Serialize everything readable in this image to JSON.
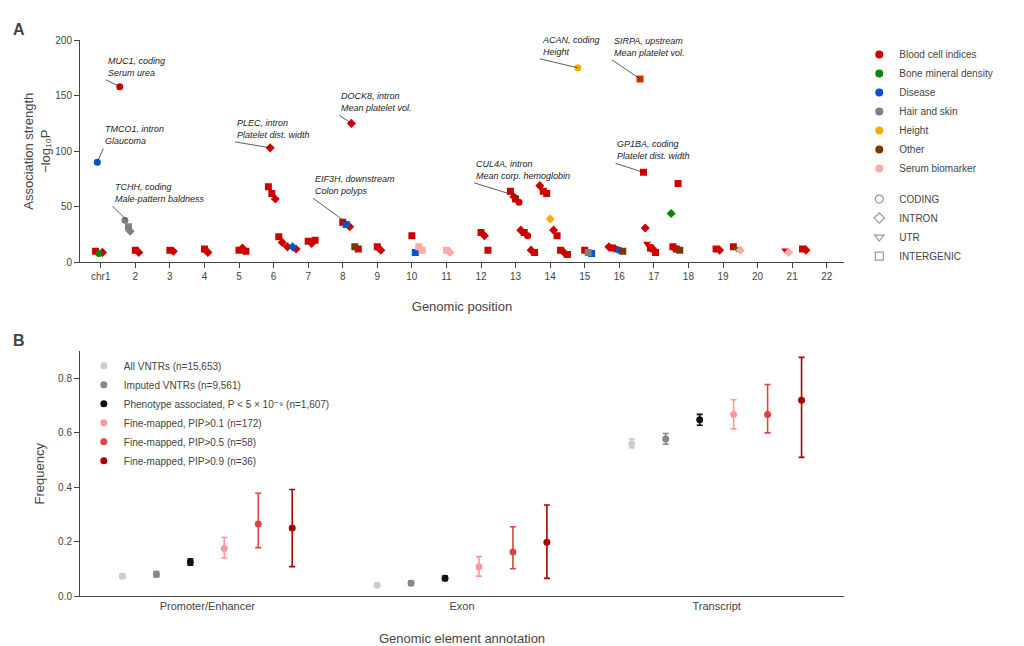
{
  "chart_data": [
    {
      "type": "scatter",
      "title": "A",
      "xlabel": "Genomic position",
      "ylabel": "Association strength\n−log₁₀P",
      "xlim": [
        0.4,
        22.5
      ],
      "ylim": [
        0,
        200
      ],
      "xticks": [
        {
          "value": 1,
          "label": "chr1"
        },
        2,
        3,
        4,
        5,
        6,
        7,
        8,
        9,
        10,
        11,
        12,
        13,
        14,
        15,
        16,
        17,
        18,
        19,
        20,
        21,
        22
      ],
      "yticks": [
        0,
        50,
        100,
        150,
        200
      ],
      "grid": false,
      "legend": "right",
      "series": [
        {
          "name": "Blood cell indices",
          "color": "#cc0000",
          "x": [
            0.85,
            1.05,
            1.55,
            2.0,
            2.1,
            3.0,
            3.1,
            4.0,
            4.1,
            5.0,
            5.1,
            5.2,
            5.85,
            5.95,
            6.05,
            5.9,
            6.15,
            6.25,
            6.4,
            6.65,
            7.0,
            7.1,
            7.2,
            8.0,
            8.2,
            8.25,
            8.45,
            9.0,
            9.1,
            10.0,
            12.0,
            12.1,
            12.2,
            12.85,
            12.95,
            13.0,
            13.1,
            13.15,
            13.25,
            13.35,
            13.45,
            13.55,
            13.7,
            13.8,
            13.9,
            14.1,
            14.2,
            14.3,
            14.4,
            14.5,
            15.0,
            15.7,
            15.8,
            15.9,
            16.7,
            16.75,
            16.8,
            16.85,
            16.9,
            16.95,
            17.0,
            17.05,
            17.55,
            17.6,
            17.65,
            17.7,
            18.8,
            18.9,
            19.3,
            20.8,
            21.3,
            21.4
          ],
          "values": [
            10,
            9,
            158,
            11,
            9,
            11,
            10,
            12,
            9,
            11,
            13,
            10,
            68,
            62,
            57,
            103,
            23,
            18,
            14,
            12,
            19,
            17,
            20,
            36,
            32,
            125,
            12,
            14,
            11,
            24,
            27,
            24,
            11,
            64,
            59,
            57,
            54,
            29,
            27,
            24,
            11,
            9,
            69,
            64,
            62,
            29,
            24,
            11,
            9,
            7,
            11,
            14,
            13,
            12,
            81,
            31,
            17,
            15,
            13,
            12,
            11,
            9,
            14,
            13,
            12,
            71,
            12,
            11,
            14,
            11,
            12,
            11
          ],
          "markers": [
            "square",
            "diamond",
            "circle",
            "square",
            "diamond",
            "square",
            "diamond",
            "square",
            "diamond",
            "square",
            "diamond",
            "square",
            "square",
            "square",
            "diamond",
            "diamond",
            "square",
            "diamond",
            "diamond",
            "diamond",
            "square",
            "diamond",
            "square",
            "square",
            "diamond",
            "diamond",
            "square",
            "square",
            "diamond",
            "square",
            "square",
            "diamond",
            "square",
            "square",
            "diamond",
            "square",
            "circle",
            "diamond",
            "square",
            "circle",
            "diamond",
            "square",
            "diamond",
            "square",
            "square",
            "diamond",
            "square",
            "square",
            "diamond",
            "square",
            "square",
            "diamond",
            "square",
            "circle",
            "square",
            "diamond",
            "triangle-down",
            "triangle-down",
            "square",
            "circle",
            "diamond",
            "square",
            "square",
            "diamond",
            "square",
            "square",
            "square",
            "diamond",
            "square",
            "triangle-down",
            "square",
            "diamond"
          ]
        },
        {
          "name": "Bone mineral density",
          "color": "#008800",
          "x": [
            0.95,
            17.5,
            19.4
          ],
          "values": [
            8,
            44,
            12
          ],
          "markers": [
            "circle",
            "diamond",
            "triangle-down"
          ]
        },
        {
          "name": "Disease",
          "color": "#0055cc",
          "x": [
            0.9,
            6.55,
            8.1,
            10.1,
            15.2,
            16.0
          ],
          "values": [
            90,
            14,
            34,
            9,
            8,
            11
          ],
          "markers": [
            "circle",
            "diamond",
            "square",
            "square",
            "square",
            "circle"
          ]
        },
        {
          "name": "Hair and skin",
          "color": "#7f7f7f",
          "x": [
            1.7,
            1.8,
            1.85,
            15.1
          ],
          "values": [
            38,
            32,
            28,
            9
          ],
          "markers": [
            "circle",
            "square",
            "diamond",
            "square"
          ]
        },
        {
          "name": "Height",
          "color": "#ffaa00",
          "x": [
            14.0,
            14.8
          ],
          "values": [
            39,
            175
          ],
          "markers": [
            "diamond",
            "circle"
          ]
        },
        {
          "name": "Other",
          "color": "#7a3700",
          "x": [
            8.35,
            16.1,
            17.75
          ],
          "values": [
            14,
            10,
            11
          ],
          "markers": [
            "square",
            "square",
            "square"
          ]
        },
        {
          "name": "Serum biomarker",
          "color": "#ffaaaa",
          "x": [
            10.2,
            10.3,
            11.0,
            11.1,
            19.5,
            20.9
          ],
          "values": [
            14,
            11,
            11,
            9,
            11,
            9
          ],
          "markers": [
            "square",
            "square",
            "square",
            "diamond",
            "diamond",
            "diamond"
          ]
        },
        {
          "color": "#cc3300",
          "x": [
            16.6
          ],
          "values": [
            165
          ],
          "markers": [
            "square"
          ]
        }
      ],
      "marker_legend": [
        {
          "name": "CODING",
          "marker": "circle"
        },
        {
          "name": "INTRON",
          "marker": "diamond"
        },
        {
          "name": "UTR",
          "marker": "triangle-down"
        },
        {
          "name": "INTERGENIC",
          "marker": "square"
        }
      ],
      "annotations": [
        {
          "text": "MUC1, coding\nSerum urea",
          "x": 1.55,
          "y": 158
        },
        {
          "text": "TMCO1, intron\nGlaucoma",
          "x": 0.9,
          "y": 90
        },
        {
          "text": "TCHH, coding\nMale-pattern baldness",
          "x": 1.75,
          "y": 38
        },
        {
          "text": "PLEC, intron\nPlatelet dist. width",
          "x": 5.9,
          "y": 103
        },
        {
          "text": "EIF3H, downstream\nColon polyps",
          "x": 8.1,
          "y": 36
        },
        {
          "text": "DOCK8, intron\nMean platelet vol.",
          "x": 8.25,
          "y": 125
        },
        {
          "text": "CUL4A, intron\nMean corp. hemoglobin",
          "x": 13.1,
          "y": 59
        },
        {
          "text": "ACAN, coding\nHeight",
          "x": 14.8,
          "y": 175
        },
        {
          "text": "SIRPA, upstream\nMean platelet vol.",
          "x": 16.6,
          "y": 165
        },
        {
          "text": "GP1BA, coding\nPlatelet dist. width",
          "x": 16.7,
          "y": 81
        }
      ]
    },
    {
      "type": "scatter",
      "title": "B",
      "xlabel": "Genomic element annotation",
      "ylabel": "Frequency",
      "categories": [
        "Promoter/Enhancer",
        "Exon",
        "Transcript"
      ],
      "ylim": [
        0,
        0.9
      ],
      "yticks": [
        {
          "value": 0,
          "label": "0.0"
        },
        0.2,
        0.4,
        0.6,
        0.8
      ],
      "grid": false,
      "legend": "upper left",
      "series": [
        {
          "name": "All VNTRs (n=15,653)",
          "color": "#cccccc",
          "values": [
            0.073,
            0.04,
            0.56
          ],
          "lows": [
            0.065,
            0.033,
            0.545
          ],
          "highs": [
            0.082,
            0.048,
            0.578
          ]
        },
        {
          "name": "Imputed VNTRs (n=9,561)",
          "color": "#888888",
          "values": [
            0.08,
            0.047,
            0.578
          ],
          "lows": [
            0.07,
            0.04,
            0.558
          ],
          "highs": [
            0.09,
            0.055,
            0.598
          ]
        },
        {
          "name": "Phenotype associated, P < 5 × 10⁻⁹ (n=1,607)",
          "color": "#111111",
          "values": [
            0.125,
            0.065,
            0.648
          ],
          "lows": [
            0.113,
            0.057,
            0.628
          ],
          "highs": [
            0.137,
            0.073,
            0.668
          ]
        },
        {
          "name": "Fine-mapped, PIP>0.1 (n=172)",
          "color": "#ff9999",
          "values": [
            0.175,
            0.108,
            0.668
          ],
          "lows": [
            0.14,
            0.073,
            0.615
          ],
          "highs": [
            0.215,
            0.145,
            0.722
          ]
        },
        {
          "name": "Fine-mapped, PIP>0.5 (n=58)",
          "color": "#dd4444",
          "values": [
            0.265,
            0.162,
            0.668
          ],
          "lows": [
            0.178,
            0.1,
            0.6
          ],
          "highs": [
            0.378,
            0.255,
            0.778
          ]
        },
        {
          "name": "Fine-mapped, PIP>0.9 (n=36)",
          "color": "#aa0000",
          "values": [
            0.25,
            0.198,
            0.72
          ],
          "lows": [
            0.108,
            0.065,
            0.51
          ],
          "highs": [
            0.392,
            0.335,
            0.878
          ]
        }
      ]
    }
  ]
}
